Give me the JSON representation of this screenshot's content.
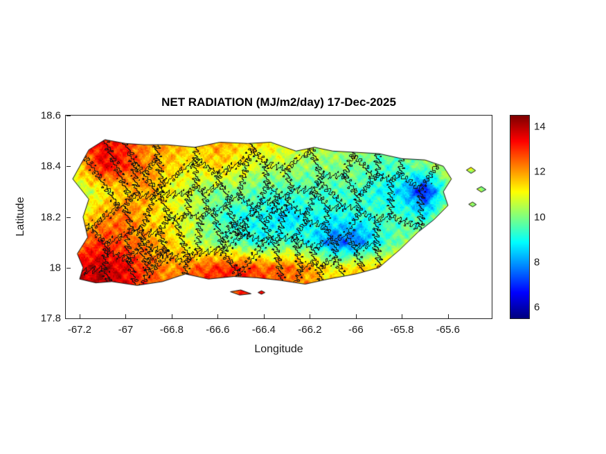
{
  "figure": {
    "background": "#ffffff"
  },
  "chart_data": {
    "type": "heatmap",
    "title": "NET RADIATION (MJ/m2/day) 17-Dec-2025",
    "date": "17-Dec-2025",
    "units": "MJ/m2/day",
    "xlabel": "Longitude",
    "ylabel": "Latitude",
    "xlim": [
      -67.26,
      -65.41
    ],
    "ylim": [
      17.8,
      18.6
    ],
    "grid_lines": false,
    "x_ticks": [
      {
        "value": -67.2,
        "label": "-67.2"
      },
      {
        "value": -67.0,
        "label": "-67"
      },
      {
        "value": -66.8,
        "label": "-66.8"
      },
      {
        "value": -66.6,
        "label": "-66.6"
      },
      {
        "value": -66.4,
        "label": "-66.4"
      },
      {
        "value": -66.2,
        "label": "-66.2"
      },
      {
        "value": -66.0,
        "label": "-66"
      },
      {
        "value": -65.8,
        "label": "-65.8"
      },
      {
        "value": -65.6,
        "label": "-65.6"
      }
    ],
    "y_ticks": [
      {
        "value": 18.6,
        "label": "18.6"
      },
      {
        "value": 18.4,
        "label": "18.4"
      },
      {
        "value": 18.2,
        "label": "18.2"
      },
      {
        "value": 18.0,
        "label": "18"
      },
      {
        "value": 17.8,
        "label": "17.8"
      }
    ],
    "colorbar": {
      "orientation": "vertical",
      "colormap": "jet",
      "clim": [
        5.5,
        14.5
      ],
      "ticks": [
        {
          "value": 14,
          "label": "14"
        },
        {
          "value": 12,
          "label": "12"
        },
        {
          "value": 10,
          "label": "10"
        },
        {
          "value": 8,
          "label": "8"
        },
        {
          "value": 6,
          "label": "6"
        }
      ]
    },
    "municipalities": {
      "boundaries_shown": true,
      "approx_count": 72
    },
    "grid": {
      "lons": [
        -67.2,
        -67.1,
        -67.0,
        -66.9,
        -66.8,
        -66.7,
        -66.6,
        -66.5,
        -66.4,
        -66.3,
        -66.2,
        -66.1,
        -66.0,
        -65.9,
        -65.8,
        -65.7,
        -65.6
      ],
      "lats": [
        18.5,
        18.4,
        18.3,
        18.2,
        18.1,
        18.0,
        17.9
      ],
      "values": [
        [
          12.5,
          13.5,
          13.0,
          12.0,
          12.0,
          11.5,
          12.0,
          11.5,
          11.5,
          11.0,
          11.0,
          10.5,
          10.5,
          10.0,
          10.0,
          10.0,
          10.0
        ],
        [
          11.5,
          13.5,
          13.0,
          12.0,
          11.5,
          11.0,
          11.5,
          11.0,
          10.5,
          10.5,
          10.0,
          10.0,
          10.0,
          9.5,
          9.5,
          10.0,
          10.5
        ],
        [
          10.5,
          11.0,
          11.5,
          12.0,
          11.0,
          10.5,
          10.0,
          10.0,
          9.5,
          9.5,
          9.5,
          9.5,
          9.5,
          9.0,
          8.5,
          6.5,
          10.0
        ],
        [
          11.0,
          12.0,
          12.5,
          11.5,
          11.0,
          10.5,
          9.5,
          9.0,
          9.0,
          8.5,
          9.0,
          9.0,
          9.0,
          9.5,
          9.5,
          9.0,
          10.5
        ],
        [
          12.5,
          13.0,
          12.5,
          12.0,
          11.5,
          10.5,
          10.0,
          9.5,
          9.0,
          9.5,
          9.0,
          7.5,
          7.5,
          9.0,
          10.0,
          10.5,
          10.5
        ],
        [
          13.5,
          14.0,
          13.5,
          12.5,
          12.0,
          12.5,
          13.0,
          13.0,
          12.5,
          12.5,
          12.0,
          11.0,
          11.5,
          11.5,
          12.0,
          11.5,
          11.0
        ],
        [
          14.0,
          14.0,
          13.5,
          13.0,
          12.5,
          13.0,
          13.0,
          13.0,
          13.0,
          12.5,
          12.0,
          11.5,
          11.5,
          11.5,
          12.0,
          11.5,
          11.0
        ]
      ]
    },
    "region": {
      "outline": [
        [
          -67.23,
          18.35
        ],
        [
          -67.16,
          18.465
        ],
        [
          -67.09,
          18.505
        ],
        [
          -67.0,
          18.49
        ],
        [
          -66.92,
          18.485
        ],
        [
          -66.82,
          18.485
        ],
        [
          -66.7,
          18.475
        ],
        [
          -66.59,
          18.495
        ],
        [
          -66.47,
          18.49
        ],
        [
          -66.37,
          18.495
        ],
        [
          -66.26,
          18.46
        ],
        [
          -66.18,
          18.475
        ],
        [
          -66.1,
          18.46
        ],
        [
          -66.0,
          18.455
        ],
        [
          -65.9,
          18.45
        ],
        [
          -65.8,
          18.43
        ],
        [
          -65.7,
          18.425
        ],
        [
          -65.62,
          18.4
        ],
        [
          -65.585,
          18.35
        ],
        [
          -65.62,
          18.3
        ],
        [
          -65.6,
          18.245
        ],
        [
          -65.66,
          18.19
        ],
        [
          -65.73,
          18.14
        ],
        [
          -65.81,
          18.07
        ],
        [
          -65.9,
          18.0
        ],
        [
          -66.0,
          17.975
        ],
        [
          -66.12,
          17.955
        ],
        [
          -66.22,
          17.935
        ],
        [
          -66.33,
          17.95
        ],
        [
          -66.43,
          17.96
        ],
        [
          -66.53,
          17.965
        ],
        [
          -66.64,
          17.955
        ],
        [
          -66.74,
          17.975
        ],
        [
          -66.84,
          17.945
        ],
        [
          -66.95,
          17.93
        ],
        [
          -67.06,
          17.945
        ],
        [
          -67.13,
          17.94
        ],
        [
          -67.2,
          17.955
        ],
        [
          -67.185,
          18.0
        ],
        [
          -67.21,
          18.055
        ],
        [
          -67.165,
          18.12
        ],
        [
          -67.185,
          18.2
        ],
        [
          -67.16,
          18.27
        ]
      ],
      "islets": [
        [
          [
            -66.545,
            17.905
          ],
          [
            -66.505,
            17.892
          ],
          [
            -66.455,
            17.897
          ],
          [
            -66.5,
            17.912
          ]
        ],
        [
          [
            -66.425,
            17.902
          ],
          [
            -66.41,
            17.895
          ],
          [
            -66.395,
            17.902
          ],
          [
            -66.41,
            17.909
          ]
        ],
        [
          [
            -65.52,
            18.385
          ],
          [
            -65.5,
            18.372
          ],
          [
            -65.48,
            18.383
          ],
          [
            -65.5,
            18.396
          ]
        ],
        [
          [
            -65.475,
            18.31
          ],
          [
            -65.455,
            18.298
          ],
          [
            -65.435,
            18.308
          ],
          [
            -65.455,
            18.32
          ]
        ],
        [
          [
            -65.51,
            18.25
          ],
          [
            -65.493,
            18.24
          ],
          [
            -65.477,
            18.249
          ],
          [
            -65.493,
            18.259
          ]
        ]
      ]
    }
  }
}
